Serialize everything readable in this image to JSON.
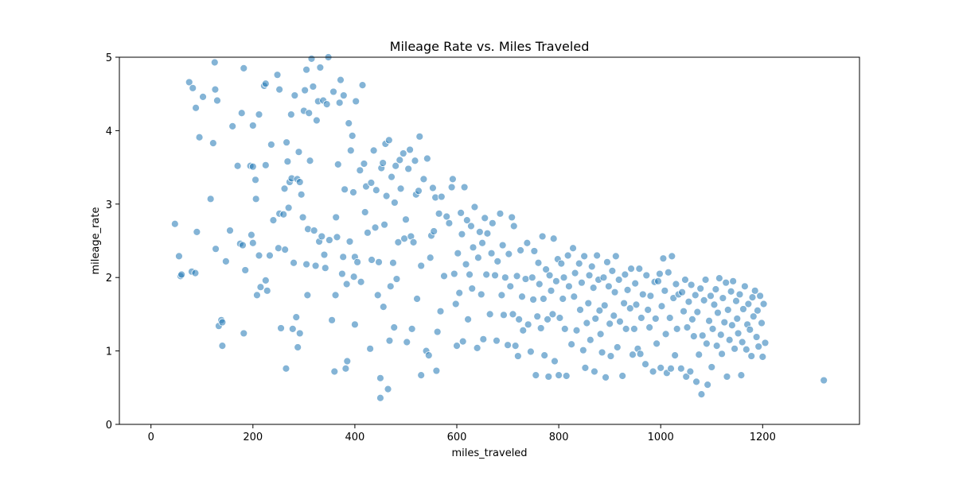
{
  "chart_data": {
    "type": "scatter",
    "title": "Mileage Rate vs. Miles Traveled",
    "x_label": "miles_traveled",
    "y_label": "mileage_rate",
    "color": "#1f77b4",
    "x": [
      47,
      55,
      58,
      60,
      75,
      80,
      82,
      87,
      88,
      90,
      95,
      102,
      117,
      122,
      125,
      126,
      127,
      130,
      133,
      138,
      140,
      140,
      147,
      155,
      160,
      170,
      175,
      178,
      180,
      182,
      182,
      185,
      195,
      197,
      200,
      200,
      200,
      205,
      206,
      208,
      212,
      212,
      215,
      222,
      225,
      225,
      225,
      228,
      233,
      236,
      240,
      248,
      250,
      252,
      252,
      255,
      260,
      262,
      263,
      265,
      266,
      268,
      270,
      272,
      275,
      276,
      278,
      280,
      282,
      285,
      287,
      288,
      290,
      292,
      292,
      295,
      298,
      300,
      302,
      305,
      305,
      307,
      308,
      310,
      312,
      315,
      318,
      320,
      323,
      325,
      328,
      330,
      332,
      335,
      338,
      340,
      342,
      345,
      348,
      350,
      355,
      358,
      360,
      362,
      363,
      365,
      367,
      370,
      372,
      375,
      377,
      378,
      380,
      382,
      384,
      385,
      388,
      390,
      392,
      395,
      397,
      398,
      400,
      400,
      402,
      405,
      410,
      412,
      415,
      418,
      420,
      422,
      425,
      430,
      432,
      433,
      437,
      440,
      442,
      445,
      447,
      450,
      450,
      452,
      455,
      456,
      458,
      460,
      462,
      465,
      467,
      468,
      470,
      472,
      475,
      477,
      478,
      480,
      482,
      485,
      488,
      490,
      495,
      497,
      500,
      502,
      505,
      508,
      510,
      512,
      515,
      518,
      520,
      522,
      525,
      527,
      530,
      530,
      535,
      540,
      542,
      545,
      548,
      550,
      553,
      555,
      558,
      560,
      562,
      565,
      568,
      570,
      575,
      580,
      585,
      590,
      592,
      595,
      598,
      600,
      602,
      605,
      608,
      610,
      612,
      615,
      618,
      620,
      622,
      625,
      628,
      630,
      632,
      635,
      640,
      642,
      645,
      648,
      650,
      652,
      655,
      658,
      660,
      665,
      668,
      670,
      675,
      678,
      680,
      685,
      688,
      690,
      692,
      695,
      700,
      702,
      705,
      708,
      710,
      712,
      715,
      718,
      720,
      722,
      725,
      728,
      730,
      735,
      738,
      740,
      745,
      748,
      750,
      752,
      755,
      758,
      760,
      762,
      765,
      768,
      770,
      772,
      775,
      778,
      780,
      782,
      785,
      788,
      790,
      792,
      795,
      798,
      800,
      802,
      805,
      808,
      810,
      812,
      815,
      818,
      820,
      825,
      828,
      830,
      832,
      835,
      840,
      842,
      845,
      848,
      850,
      852,
      855,
      858,
      860,
      862,
      865,
      868,
      870,
      872,
      875,
      878,
      880,
      882,
      885,
      888,
      890,
      892,
      895,
      898,
      900,
      902,
      905,
      908,
      910,
      912,
      915,
      918,
      920,
      925,
      928,
      930,
      932,
      935,
      940,
      942,
      945,
      948,
      950,
      952,
      955,
      958,
      960,
      962,
      965,
      970,
      972,
      975,
      978,
      980,
      985,
      988,
      990,
      992,
      995,
      998,
      1000,
      1002,
      1005,
      1008,
      1010,
      1012,
      1015,
      1018,
      1020,
      1022,
      1025,
      1028,
      1030,
      1032,
      1035,
      1040,
      1042,
      1045,
      1048,
      1050,
      1052,
      1055,
      1058,
      1060,
      1062,
      1065,
      1068,
      1070,
      1072,
      1075,
      1078,
      1080,
      1082,
      1085,
      1088,
      1090,
      1092,
      1095,
      1098,
      1100,
      1102,
      1105,
      1108,
      1110,
      1112,
      1115,
      1118,
      1120,
      1122,
      1125,
      1128,
      1130,
      1132,
      1135,
      1138,
      1140,
      1142,
      1145,
      1148,
      1150,
      1152,
      1155,
      1158,
      1160,
      1162,
      1165,
      1168,
      1170,
      1172,
      1175,
      1178,
      1180,
      1182,
      1185,
      1188,
      1190,
      1192,
      1195,
      1198,
      1200,
      1202,
      1205,
      1320
    ],
    "values": [
      2.73,
      2.29,
      2.02,
      2.04,
      4.66,
      2.08,
      4.58,
      2.06,
      4.31,
      2.62,
      3.91,
      4.46,
      3.07,
      3.83,
      4.93,
      4.56,
      2.39,
      4.41,
      1.34,
      1.42,
      1.07,
      1.39,
      2.22,
      2.64,
      4.06,
      3.52,
      2.46,
      4.24,
      2.44,
      4.85,
      1.24,
      2.1,
      3.52,
      2.58,
      4.07,
      3.51,
      2.47,
      3.33,
      3.07,
      1.76,
      4.22,
      2.3,
      1.87,
      4.61,
      4.64,
      3.53,
      1.96,
      1.82,
      2.3,
      3.81,
      2.78,
      4.76,
      2.4,
      4.56,
      2.87,
      1.31,
      2.86,
      3.21,
      2.38,
      0.76,
      3.84,
      3.58,
      2.95,
      3.3,
      4.22,
      3.35,
      1.3,
      2.2,
      4.48,
      1.46,
      3.34,
      1.05,
      3.71,
      1.24,
      3.3,
      3.13,
      2.82,
      4.27,
      4.55,
      2.18,
      4.83,
      1.76,
      2.66,
      4.24,
      3.59,
      4.98,
      4.6,
      2.64,
      2.16,
      4.14,
      4.4,
      2.49,
      4.86,
      2.56,
      4.41,
      2.31,
      2.13,
      4.36,
      5.0,
      2.51,
      1.42,
      4.53,
      0.72,
      1.76,
      2.82,
      2.55,
      3.54,
      4.38,
      4.69,
      2.05,
      2.28,
      4.48,
      3.2,
      0.76,
      1.91,
      0.86,
      4.1,
      2.49,
      3.73,
      3.93,
      3.16,
      2.01,
      1.36,
      2.28,
      4.4,
      2.21,
      3.46,
      1.94,
      4.62,
      3.55,
      2.89,
      3.24,
      2.61,
      1.03,
      3.29,
      2.24,
      3.73,
      2.68,
      3.19,
      1.76,
      2.21,
      0.63,
      0.36,
      3.49,
      3.56,
      1.6,
      2.72,
      3.82,
      3.11,
      0.48,
      3.87,
      1.14,
      1.88,
      3.37,
      2.2,
      1.32,
      3.02,
      3.52,
      1.98,
      2.48,
      3.6,
      3.21,
      3.69,
      2.53,
      2.79,
      1.12,
      3.48,
      3.74,
      2.56,
      1.3,
      2.48,
      3.59,
      3.13,
      1.71,
      3.18,
      3.92,
      2.16,
      0.67,
      3.34,
      1.0,
      3.62,
      0.94,
      2.27,
      2.57,
      3.22,
      2.63,
      3.09,
      0.73,
      1.26,
      2.87,
      1.54,
      3.1,
      2.02,
      2.83,
      2.74,
      3.23,
      3.34,
      2.05,
      1.64,
      1.07,
      2.33,
      1.79,
      2.88,
      2.59,
      1.13,
      3.23,
      2.18,
      2.78,
      1.43,
      2.04,
      2.7,
      1.85,
      2.41,
      2.96,
      1.04,
      2.27,
      2.62,
      1.77,
      2.47,
      1.16,
      2.81,
      2.04,
      2.6,
      1.5,
      2.33,
      2.74,
      2.03,
      1.14,
      2.22,
      2.87,
      1.76,
      2.44,
      1.49,
      2.0,
      1.08,
      2.32,
      1.88,
      2.82,
      1.5,
      2.7,
      1.07,
      2.02,
      0.93,
      1.43,
      2.37,
      1.74,
      1.28,
      1.98,
      2.47,
      1.36,
      0.99,
      2.0,
      1.7,
      2.36,
      0.67,
      1.47,
      2.2,
      1.91,
      1.31,
      2.56,
      1.71,
      0.94,
      2.11,
      1.43,
      0.65,
      2.03,
      1.82,
      1.5,
      2.53,
      0.86,
      1.95,
      2.25,
      0.67,
      1.45,
      2.19,
      1.71,
      2.0,
      1.3,
      0.66,
      2.3,
      1.88,
      1.09,
      2.4,
      1.74,
      2.06,
      1.28,
      2.19,
      1.56,
      1.93,
      1.01,
      2.29,
      0.77,
      1.38,
      1.65,
      2.03,
      1.15,
      2.15,
      1.86,
      0.72,
      1.44,
      2.3,
      1.97,
      1.55,
      1.23,
      0.98,
      2.0,
      1.62,
      0.64,
      2.21,
      1.88,
      1.37,
      0.93,
      2.09,
      1.48,
      1.8,
      2.29,
      1.05,
      1.97,
      1.4,
      0.66,
      1.65,
      2.04,
      1.3,
      1.83,
      1.58,
      2.12,
      0.95,
      1.3,
      1.92,
      1.63,
      1.03,
      2.12,
      0.96,
      1.45,
      1.77,
      0.82,
      2.03,
      1.56,
      1.32,
      1.75,
      0.72,
      1.94,
      1.44,
      1.1,
      1.95,
      2.05,
      0.77,
      1.61,
      2.26,
      1.82,
      1.23,
      0.7,
      2.07,
      1.45,
      0.76,
      2.29,
      1.72,
      0.94,
      1.91,
      1.3,
      1.77,
      0.76,
      1.8,
      1.54,
      1.97,
      0.65,
      1.32,
      1.67,
      0.72,
      1.9,
      1.43,
      1.2,
      1.76,
      0.58,
      1.53,
      0.95,
      1.85,
      0.41,
      1.21,
      1.69,
      1.97,
      1.1,
      0.54,
      1.41,
      1.75,
      0.78,
      1.3,
      1.63,
      1.84,
      1.07,
      1.52,
      1.99,
      1.22,
      0.96,
      1.72,
      1.39,
      1.93,
      0.65,
      1.56,
      1.15,
      1.81,
      1.35,
      1.95,
      1.03,
      1.68,
      1.44,
      1.24,
      1.77,
      0.67,
      1.12,
      1.57,
      1.88,
      1.02,
      1.36,
      1.64,
      1.29,
      0.93,
      1.73,
      1.47,
      1.82,
      1.19,
      1.55,
      1.06,
      1.75,
      1.38,
      0.92,
      1.64,
      1.11,
      0.6
    ],
    "xlim": [
      -62,
      1390
    ],
    "ylim": [
      0,
      5
    ],
    "xticks": [
      0,
      200,
      400,
      600,
      800,
      1000,
      1200
    ],
    "yticks": [
      0,
      1,
      2,
      3,
      4,
      5
    ]
  }
}
